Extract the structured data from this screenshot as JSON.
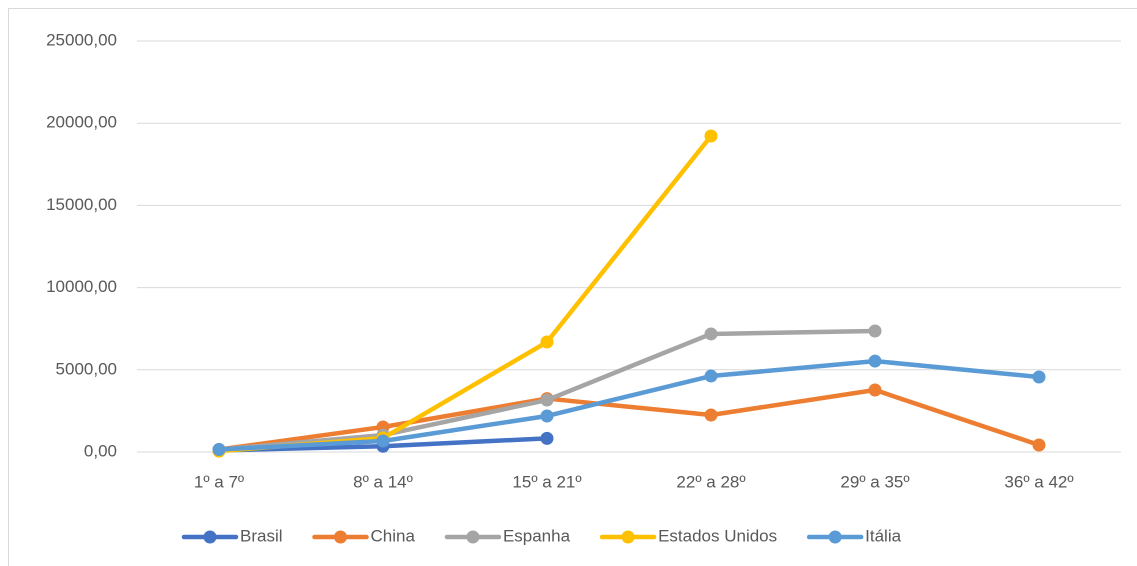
{
  "chart_data": {
    "type": "line",
    "categories": [
      "1º a 7º",
      "8º a 14º",
      "15º a 21º",
      "22º a 28º",
      "29º a 35º",
      "36º a 42º"
    ],
    "series": [
      {
        "name": "Brasil",
        "color": "#4472c4",
        "values": [
          100,
          350,
          830,
          null,
          null,
          null
        ]
      },
      {
        "name": "China",
        "color": "#ed7d31",
        "values": [
          150,
          1520,
          3250,
          2250,
          3770,
          425
        ]
      },
      {
        "name": "Espanha",
        "color": "#a5a5a5",
        "values": [
          150,
          1030,
          3160,
          7180,
          7360,
          null
        ]
      },
      {
        "name": "Estados Unidos",
        "color": "#ffc000",
        "values": [
          50,
          850,
          6690,
          19220,
          null,
          null
        ]
      },
      {
        "name": "Itália",
        "color": "#5b9bd5",
        "values": [
          150,
          670,
          2190,
          4620,
          5530,
          4560
        ]
      }
    ],
    "ylim": [
      0,
      25000
    ],
    "yticks": [
      {
        "value": 0,
        "label": "0,00"
      },
      {
        "value": 5000,
        "label": "5000,00"
      },
      {
        "value": 10000,
        "label": "10000,00"
      },
      {
        "value": 15000,
        "label": "15000,00"
      },
      {
        "value": 20000,
        "label": "20000,00"
      },
      {
        "value": 25000,
        "label": "25000,00"
      }
    ],
    "grid": true,
    "legend": "bottom"
  }
}
